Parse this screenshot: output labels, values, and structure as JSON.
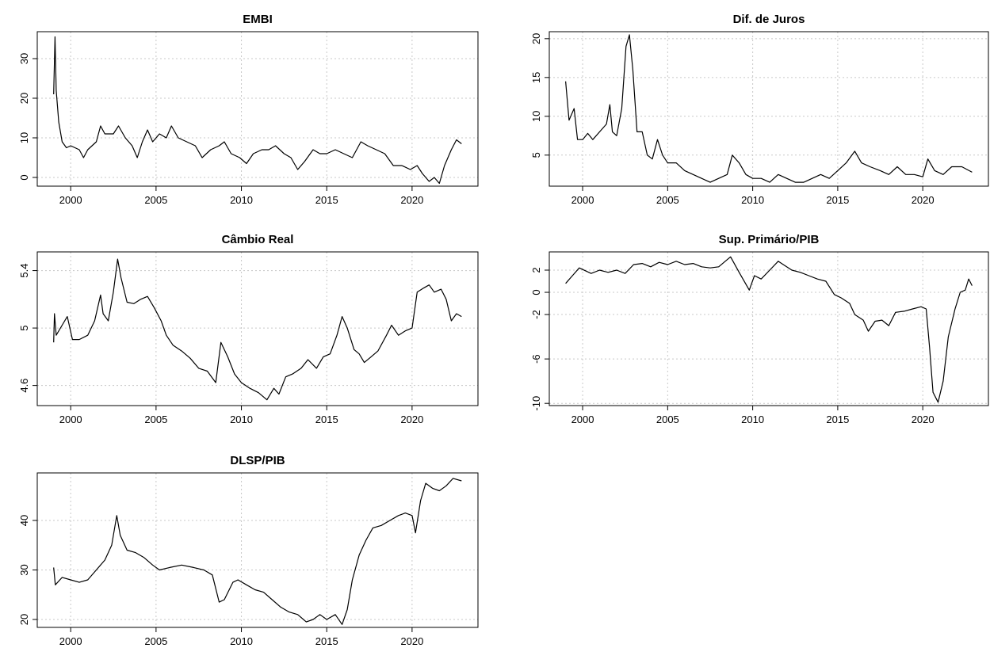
{
  "chart_data": [
    {
      "type": "line",
      "title": "EMBI",
      "xlim": [
        1998.04,
        2023.86
      ],
      "xticks": [
        2000,
        2005,
        2010,
        2015,
        2020
      ],
      "ylim": [
        -2.2,
        36.8
      ],
      "yticks": [
        0,
        10,
        20,
        30
      ],
      "grid": true,
      "color": "#000000",
      "x": [
        1999.0,
        1999.08,
        1999.15,
        1999.3,
        1999.5,
        1999.75,
        2000.0,
        2000.5,
        2000.75,
        2001.0,
        2001.5,
        2001.75,
        2002.0,
        2002.5,
        2002.8,
        2003.2,
        2003.6,
        2003.9,
        2004.2,
        2004.5,
        2004.8,
        2005.2,
        2005.6,
        2005.9,
        2006.3,
        2006.8,
        2007.3,
        2007.7,
        2008.2,
        2008.7,
        2009.0,
        2009.4,
        2009.9,
        2010.3,
        2010.7,
        2011.2,
        2011.6,
        2012.0,
        2012.5,
        2012.9,
        2013.3,
        2013.7,
        2014.2,
        2014.6,
        2015.0,
        2015.5,
        2016.0,
        2016.5,
        2017.0,
        2017.4,
        2017.9,
        2018.4,
        2018.9,
        2019.4,
        2019.9,
        2020.3,
        2020.6,
        2021.0,
        2021.3,
        2021.6,
        2021.9,
        2022.3,
        2022.6,
        2022.9
      ],
      "values": [
        21,
        35.5,
        22,
        14,
        9,
        7.5,
        8,
        7,
        5,
        7,
        9,
        13,
        11,
        11,
        13,
        10,
        8,
        5,
        9,
        12,
        9,
        11,
        10,
        13,
        10,
        9,
        8,
        5,
        7,
        8,
        9,
        6,
        5,
        3.5,
        6,
        7,
        7,
        8,
        6,
        5,
        2,
        4,
        7,
        6,
        6,
        7,
        6,
        5,
        9,
        8,
        7,
        6,
        3,
        3,
        2,
        3,
        1,
        -1,
        0,
        -1.5,
        3,
        7,
        9.5,
        8.5
      ]
    },
    {
      "type": "line",
      "title": "Dif. de Juros",
      "xlim": [
        1998.04,
        2023.86
      ],
      "xticks": [
        2000,
        2005,
        2010,
        2015,
        2020
      ],
      "ylim": [
        1.0,
        20.9
      ],
      "yticks": [
        5,
        10,
        15,
        20
      ],
      "grid": true,
      "color": "#000000",
      "x": [
        1999.0,
        1999.2,
        1999.5,
        1999.7,
        2000.0,
        2000.3,
        2000.6,
        2001.0,
        2001.4,
        2001.6,
        2001.75,
        2002.0,
        2002.3,
        2002.55,
        2002.75,
        2002.95,
        2003.2,
        2003.5,
        2003.8,
        2004.1,
        2004.4,
        2004.7,
        2005.0,
        2005.5,
        2006.0,
        2006.5,
        2007.0,
        2007.5,
        2008.0,
        2008.5,
        2008.8,
        2009.2,
        2009.6,
        2010.0,
        2010.5,
        2011.0,
        2011.5,
        2012.0,
        2012.5,
        2013.0,
        2013.5,
        2014.0,
        2014.5,
        2015.0,
        2015.5,
        2016.0,
        2016.4,
        2016.9,
        2017.5,
        2018.0,
        2018.5,
        2019.0,
        2019.5,
        2020.0,
        2020.3,
        2020.7,
        2021.2,
        2021.7,
        2022.3,
        2022.9
      ],
      "values": [
        14.5,
        9.5,
        11,
        7,
        7,
        7.8,
        7,
        8,
        9,
        11.5,
        8,
        7.5,
        11,
        19,
        20.5,
        16,
        8,
        8,
        5,
        4.5,
        7,
        5,
        4,
        4,
        3,
        2.5,
        2,
        1.5,
        2,
        2.5,
        5,
        4,
        2.5,
        2,
        2,
        1.5,
        2.5,
        2,
        1.5,
        1.5,
        2,
        2.5,
        2,
        3,
        4,
        5.5,
        4,
        3.5,
        3,
        2.5,
        3.5,
        2.5,
        2.5,
        2.2,
        4.5,
        3,
        2.5,
        3.5,
        3.5,
        2.8
      ]
    },
    {
      "type": "line",
      "title": "Câmbio Real",
      "xlim": [
        1998.04,
        2023.86
      ],
      "xticks": [
        2000,
        2005,
        2010,
        2015,
        2020
      ],
      "ylim": [
        4.46,
        5.53
      ],
      "yticks": [
        4.6,
        5.0,
        5.4
      ],
      "grid": true,
      "color": "#000000",
      "x": [
        1999.0,
        1999.05,
        1999.15,
        1999.5,
        1999.8,
        2000.1,
        2000.5,
        2001.0,
        2001.4,
        2001.75,
        2001.9,
        2002.2,
        2002.5,
        2002.75,
        2002.95,
        2003.3,
        2003.7,
        2004.1,
        2004.5,
        2004.9,
        2005.3,
        2005.6,
        2006.0,
        2006.5,
        2007.0,
        2007.5,
        2008.0,
        2008.5,
        2008.8,
        2009.2,
        2009.6,
        2010.0,
        2010.5,
        2011.0,
        2011.5,
        2011.9,
        2012.2,
        2012.6,
        2013.0,
        2013.5,
        2013.9,
        2014.4,
        2014.8,
        2015.2,
        2015.6,
        2015.9,
        2016.2,
        2016.6,
        2016.9,
        2017.2,
        2017.6,
        2018.0,
        2018.5,
        2018.8,
        2019.2,
        2019.6,
        2020.0,
        2020.3,
        2020.7,
        2021.0,
        2021.3,
        2021.7,
        2022.0,
        2022.3,
        2022.6,
        2022.9
      ],
      "values": [
        4.9,
        5.1,
        4.95,
        5.02,
        5.08,
        4.92,
        4.92,
        4.95,
        5.05,
        5.23,
        5.1,
        5.05,
        5.25,
        5.48,
        5.35,
        5.18,
        5.17,
        5.2,
        5.22,
        5.14,
        5.05,
        4.95,
        4.88,
        4.84,
        4.79,
        4.72,
        4.7,
        4.62,
        4.9,
        4.8,
        4.68,
        4.62,
        4.58,
        4.55,
        4.5,
        4.58,
        4.54,
        4.66,
        4.68,
        4.72,
        4.78,
        4.72,
        4.8,
        4.82,
        4.95,
        5.08,
        5.0,
        4.85,
        4.82,
        4.76,
        4.8,
        4.84,
        4.95,
        5.02,
        4.95,
        4.98,
        5.0,
        5.25,
        5.28,
        5.3,
        5.25,
        5.27,
        5.2,
        5.05,
        5.1,
        5.08
      ]
    },
    {
      "type": "line",
      "title": "Sup. Primário/PIB",
      "xlim": [
        1998.04,
        2023.86
      ],
      "xticks": [
        2000,
        2005,
        2010,
        2015,
        2020
      ],
      "ylim": [
        -10.2,
        3.64
      ],
      "yticks": [
        -10,
        -6,
        -2,
        0,
        2
      ],
      "grid": true,
      "color": "#000000",
      "x": [
        1999.0,
        1999.4,
        1999.8,
        2000.5,
        2001.0,
        2001.5,
        2002.0,
        2002.5,
        2003.0,
        2003.5,
        2004.0,
        2004.5,
        2005.0,
        2005.5,
        2006.0,
        2006.5,
        2007.0,
        2007.5,
        2008.0,
        2008.7,
        2009.2,
        2009.8,
        2010.1,
        2010.5,
        2011.0,
        2011.5,
        2011.8,
        2012.3,
        2012.8,
        2013.3,
        2013.8,
        2014.3,
        2014.8,
        2015.2,
        2015.7,
        2016.0,
        2016.5,
        2016.8,
        2017.2,
        2017.6,
        2018.0,
        2018.4,
        2018.9,
        2019.4,
        2019.9,
        2020.2,
        2020.4,
        2020.6,
        2020.9,
        2021.2,
        2021.5,
        2021.9,
        2022.2,
        2022.5,
        2022.7,
        2022.9
      ],
      "values": [
        0.8,
        1.5,
        2.2,
        1.7,
        2,
        1.8,
        2,
        1.7,
        2.5,
        2.6,
        2.3,
        2.7,
        2.5,
        2.8,
        2.5,
        2.6,
        2.3,
        2.2,
        2.3,
        3.2,
        1.8,
        0.2,
        1.5,
        1.2,
        2,
        2.8,
        2.5,
        2,
        1.8,
        1.5,
        1.2,
        1.0,
        -0.2,
        -0.5,
        -1.0,
        -2.0,
        -2.5,
        -3.5,
        -2.6,
        -2.5,
        -3.0,
        -1.8,
        -1.7,
        -1.5,
        -1.3,
        -1.5,
        -5,
        -9,
        -9.9,
        -8,
        -4,
        -1.5,
        0,
        0.2,
        1.2,
        0.6
      ]
    },
    {
      "type": "line",
      "title": "DLSP/PIB",
      "xlim": [
        1998.04,
        2023.86
      ],
      "xticks": [
        2000,
        2005,
        2010,
        2015,
        2020
      ],
      "ylim": [
        18.4,
        49.6
      ],
      "yticks": [
        20,
        30,
        40
      ],
      "grid": true,
      "color": "#000000",
      "x": [
        1999.0,
        1999.1,
        1999.5,
        2000.0,
        2000.5,
        2001.0,
        2001.5,
        2002.0,
        2002.4,
        2002.7,
        2002.9,
        2003.3,
        2003.8,
        2004.3,
        2004.8,
        2005.2,
        2005.8,
        2006.5,
        2007.2,
        2007.8,
        2008.3,
        2008.7,
        2009.0,
        2009.5,
        2009.8,
        2010.3,
        2010.8,
        2011.3,
        2011.8,
        2012.3,
        2012.8,
        2013.3,
        2013.8,
        2014.2,
        2014.6,
        2015.0,
        2015.5,
        2015.9,
        2016.2,
        2016.5,
        2016.9,
        2017.3,
        2017.7,
        2018.2,
        2018.7,
        2019.2,
        2019.6,
        2020.0,
        2020.2,
        2020.5,
        2020.8,
        2021.2,
        2021.6,
        2022.0,
        2022.4,
        2022.9
      ],
      "values": [
        30.5,
        27,
        28.5,
        28,
        27.5,
        28,
        30,
        32,
        35,
        41,
        37,
        34,
        33.5,
        32.5,
        31,
        30,
        30.5,
        31,
        30.5,
        30,
        29,
        23.5,
        24,
        27.5,
        28,
        27,
        26,
        25.5,
        24,
        22.5,
        21.5,
        21,
        19.5,
        20,
        21,
        20,
        21,
        19,
        22,
        28,
        33,
        36,
        38.5,
        39,
        40,
        41,
        41.5,
        41,
        37.5,
        44,
        47.5,
        46.5,
        46,
        47,
        48.5,
        48
      ]
    }
  ]
}
